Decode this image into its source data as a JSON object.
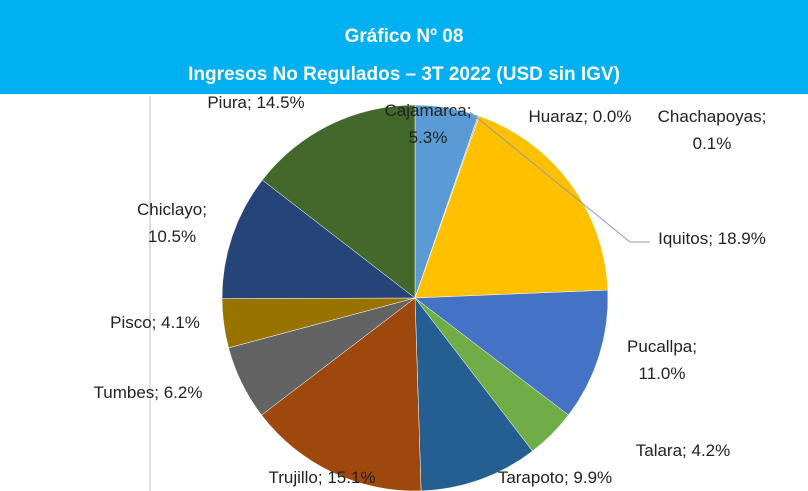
{
  "chart_data": {
    "type": "pie",
    "title": "Gráfico Nº 08",
    "subtitle": "Ingresos No Regulados – 3T 2022 (USD sin IGV)",
    "values": [
      5.3,
      0.0,
      0.1,
      18.9,
      11.0,
      4.2,
      9.9,
      15.1,
      6.2,
      4.1,
      10.5,
      14.5
    ],
    "value_labels": [
      "Cajamarca; 5.3%",
      "Huaraz; 0.0%",
      "Chachapoyas; 0.1%",
      "Iquitos; 18.9%",
      "Pucallpa; 11.0%",
      "Talara; 4.2%",
      "Tarapoto; 9.9%",
      "Trujillo; 15.1%",
      "Tumbes; 6.2%",
      "Pisco; 4.1%",
      "Chiclayo; 10.5%",
      "Piura; 14.5%"
    ],
    "colors": [
      "#5b9bd5",
      "#ed7d31",
      "#a5a5a5",
      "#ffc000",
      "#4472c4",
      "#70ad47",
      "#255e91",
      "#9e480e",
      "#636363",
      "#997300",
      "#264478",
      "#43682b"
    ]
  }
}
